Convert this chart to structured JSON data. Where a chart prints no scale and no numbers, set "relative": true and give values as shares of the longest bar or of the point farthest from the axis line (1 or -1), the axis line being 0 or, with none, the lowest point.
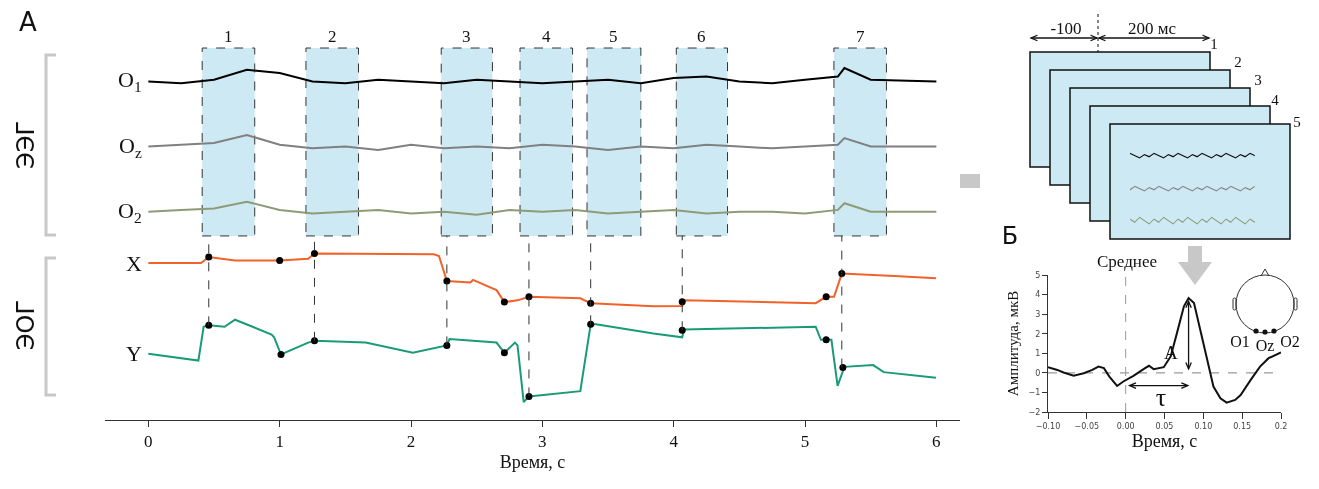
{
  "chart_data": [
    {
      "type": "line",
      "relative": true,
      "xlabel": "Время, с",
      "xlim": [
        -0.33,
        6.18
      ],
      "xticks": [
        0,
        1,
        2,
        3,
        4,
        5,
        6
      ],
      "tick_labels": "x",
      "grid": false,
      "legend": false,
      "marker": "none",
      "x": [
        0,
        0.25,
        0.5,
        0.75,
        1,
        1.25,
        1.5,
        1.75,
        2,
        2.25,
        2.5,
        2.75,
        3,
        3.25,
        3.5,
        3.75,
        4,
        4.25,
        4.5,
        4.75,
        5,
        5.25,
        5.3,
        5.5,
        6
      ],
      "series": [
        {
          "name": "O$_{1}$",
          "color": "#000000",
          "values": [
            0.962,
            0.957,
            0.967,
            0.995,
            0.986,
            0.962,
            0.957,
            0.967,
            0.962,
            0.957,
            0.967,
            0.962,
            0.957,
            0.962,
            0.967,
            0.957,
            0.972,
            0.976,
            0.962,
            0.957,
            0.967,
            0.976,
            1.0,
            0.967,
            0.962
          ]
        },
        {
          "name": "O$_{z}$",
          "color": "#808080",
          "values": [
            0.777,
            0.782,
            0.787,
            0.81,
            0.782,
            0.772,
            0.777,
            0.767,
            0.782,
            0.772,
            0.777,
            0.772,
            0.782,
            0.777,
            0.767,
            0.777,
            0.772,
            0.782,
            0.777,
            0.772,
            0.777,
            0.782,
            0.801,
            0.777,
            0.777
          ]
        },
        {
          "name": "O$_{2}$",
          "color": "#8f9a76",
          "values": [
            0.592,
            0.597,
            0.601,
            0.62,
            0.597,
            0.587,
            0.592,
            0.597,
            0.587,
            0.592,
            0.583,
            0.597,
            0.592,
            0.597,
            0.587,
            0.592,
            0.597,
            0.587,
            0.592,
            0.592,
            0.587,
            0.597,
            0.616,
            0.592,
            0.592
          ]
        },
        {
          "name": "X",
          "color": "#f0622a",
          "x": [
            0,
            0.401,
            0.46,
            0.66,
            1.0,
            1.217,
            1.265,
            2.173,
            2.213,
            2.273,
            2.452,
            2.472,
            2.651,
            2.711,
            2.811,
            2.898,
            3.289,
            3.368,
            3.846,
            4.065,
            4.085,
            5.081,
            5.161,
            5.221,
            5.28,
            5.679,
            5.997
          ],
          "values": [
            0.446,
            0.446,
            0.463,
            0.453,
            0.453,
            0.458,
            0.473,
            0.471,
            0.466,
            0.395,
            0.391,
            0.398,
            0.369,
            0.335,
            0.34,
            0.35,
            0.346,
            0.332,
            0.323,
            0.324,
            0.34,
            0.332,
            0.35,
            0.35,
            0.416,
            0.409,
            0.403
          ]
        },
        {
          "name": "Y",
          "color": "#1a9b78",
          "x": [
            0,
            0.381,
            0.421,
            0.46,
            0.58,
            0.66,
            0.938,
            0.958,
            1.01,
            1.217,
            1.265,
            1.655,
            2.014,
            2.273,
            2.293,
            2.651,
            2.711,
            2.791,
            2.811,
            2.858,
            2.898,
            3.289,
            3.368,
            3.408,
            3.846,
            4.065,
            4.077,
            5.081,
            5.121,
            5.201,
            5.248,
            5.3,
            5.519,
            5.599,
            5.997
          ],
          "values": [
            0.188,
            0.169,
            0.265,
            0.269,
            0.265,
            0.285,
            0.243,
            0.235,
            0.186,
            0.22,
            0.225,
            0.22,
            0.191,
            0.212,
            0.23,
            0.22,
            0.191,
            0.22,
            0.212,
            0.051,
            0.067,
            0.082,
            0.272,
            0.272,
            0.246,
            0.235,
            0.257,
            0.265,
            0.228,
            0.228,
            0.097,
            0.151,
            0.156,
            0.136,
            0.12
          ]
        },
        {
          "type": "scatter",
          "marker": "circle",
          "color": "#000000",
          "x": [
            0.46,
            1.0,
            1.265,
            2.273,
            2.711,
            2.898,
            3.368,
            4.065,
            5.161,
            5.28
          ],
          "values": [
            0.463,
            0.453,
            0.473,
            0.395,
            0.335,
            0.35,
            0.332,
            0.336,
            0.35,
            0.416
          ]
        },
        {
          "type": "scatter",
          "marker": "circle",
          "color": "#000000",
          "x": [
            0.46,
            1.01,
            1.265,
            2.273,
            2.711,
            2.898,
            3.368,
            4.065,
            5.161,
            5.288
          ],
          "values": [
            0.269,
            0.186,
            0.225,
            0.212,
            0.191,
            0.067,
            0.272,
            0.255,
            0.228,
            0.149
          ]
        }
      ],
      "bands": [
        {
          "axis": "x",
          "from": 0.41,
          "to": 0.81,
          "label": "1",
          "color": "#cde9f3"
        },
        {
          "axis": "x",
          "from": 1.2,
          "to": 1.6,
          "label": "2",
          "color": "#cde9f3"
        },
        {
          "axis": "x",
          "from": 2.23,
          "to": 2.62,
          "label": "3",
          "color": "#cde9f3"
        },
        {
          "axis": "x",
          "from": 2.83,
          "to": 3.23,
          "label": "4",
          "color": "#cde9f3"
        },
        {
          "axis": "x",
          "from": 3.34,
          "to": 3.75,
          "label": "5",
          "color": "#cde9f3"
        },
        {
          "axis": "x",
          "from": 4.02,
          "to": 4.41,
          "label": "6",
          "color": "#cde9f3"
        },
        {
          "axis": "x",
          "from": 5.22,
          "to": 5.62,
          "label": "7",
          "color": "#cde9f3"
        }
      ],
      "ref_lines": [
        {
          "axis": "x",
          "value": 0.46,
          "line_style": "dashed",
          "color": "#333333"
        },
        {
          "axis": "x",
          "value": 1.265,
          "line_style": "dashed",
          "color": "#333333"
        },
        {
          "axis": "x",
          "value": 2.273,
          "line_style": "dashed",
          "color": "#333333"
        },
        {
          "axis": "x",
          "value": 2.898,
          "line_style": "dashed",
          "color": "#333333"
        },
        {
          "axis": "x",
          "value": 3.368,
          "line_style": "dashed",
          "color": "#333333"
        },
        {
          "axis": "x",
          "value": 4.065,
          "line_style": "dashed",
          "color": "#333333"
        },
        {
          "axis": "x",
          "value": 5.28,
          "line_style": "dashed",
          "color": "#333333"
        }
      ],
      "annotations": [
        "А",
        "ЭЭГ",
        "ЭОГ"
      ]
    },
    {
      "type": "line",
      "xlabel": "Время, с",
      "ylabel": "Амплитуда, мкВ",
      "xlim": [
        -0.1,
        0.2
      ],
      "ylim": [
        -2,
        5
      ],
      "grid": false,
      "legend": false,
      "line_style": "solid",
      "xticks": [
        {
          "value": -0.1,
          "label": "−0.10"
        },
        {
          "value": -0.05,
          "label": "−0.05"
        },
        {
          "value": 0,
          "label": "0.00"
        },
        {
          "value": 0.05,
          "label": "0.05"
        },
        {
          "value": 0.1,
          "label": "0.10"
        },
        {
          "value": 0.15,
          "label": "0.15"
        },
        {
          "value": 0.2,
          "label": "0.2"
        }
      ],
      "yticks": [
        {
          "value": -2,
          "label": "−2"
        },
        {
          "value": -1,
          "label": "−1"
        },
        0,
        1,
        2,
        3,
        4,
        5
      ],
      "x": [
        -0.1,
        -0.088,
        -0.08,
        -0.067,
        -0.054,
        -0.043,
        -0.035,
        -0.028,
        -0.021,
        -0.011,
        -0.003,
        0.01,
        0.025,
        0.03,
        0.036,
        0.049,
        0.058,
        0.066,
        0.075,
        0.081,
        0.088,
        0.096,
        0.105,
        0.113,
        0.122,
        0.13,
        0.141,
        0.148,
        0.161,
        0.173,
        0.184,
        0.2
      ],
      "series": [
        {
          "color": "#111111",
          "values": [
            0.29,
            0.15,
            0.02,
            -0.14,
            -0.02,
            0.15,
            0.32,
            0.24,
            -0.19,
            -0.67,
            -0.44,
            -0.15,
            0.24,
            0.36,
            0.19,
            0.29,
            0.84,
            2.03,
            3.4,
            3.82,
            3.57,
            2.2,
            0.67,
            -0.7,
            -1.3,
            -1.52,
            -1.38,
            -1.13,
            -0.36,
            0.32,
            0.75,
            1.04
          ]
        }
      ],
      "ref_lines": [
        {
          "axis": "x",
          "value": 0,
          "line_style": "dashed",
          "color": "#999999"
        },
        {
          "axis": "y",
          "value": 0,
          "line_style": "dashed",
          "color": "#999999"
        }
      ],
      "annotations": [
        {
          "text": "A",
          "x": 0.081,
          "y": 3.82
        },
        "τ",
        "Б",
        "Среднее",
        "-100",
        "200 мс",
        "1",
        "2",
        "3",
        "4",
        "5",
        "O1",
        "Oz",
        "O2"
      ]
    }
  ]
}
